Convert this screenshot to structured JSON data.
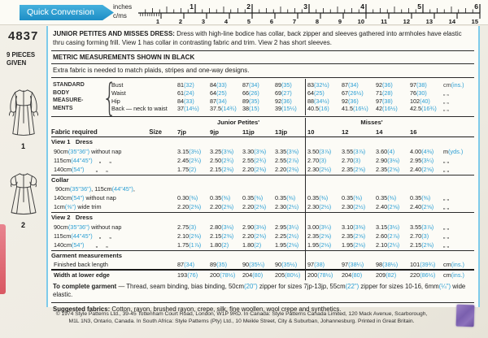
{
  "ruler": {
    "banner": "Quick Conversion",
    "unit_top": "inches",
    "unit_bottom": "c/ms",
    "inch_numbers": [
      1,
      2,
      3,
      4,
      5,
      6
    ],
    "cm_numbers": [
      1,
      2,
      3,
      4,
      5,
      6,
      7,
      8,
      9,
      10,
      11,
      12,
      13,
      14,
      15
    ]
  },
  "sidebar": {
    "pattern_number": "4837",
    "pieces_line1": "9 PIECES",
    "pieces_line2": "GIVEN",
    "view1_label": "1",
    "view2_label": "2"
  },
  "header": {
    "title_lead": "JUNIOR PETITES AND MISSES DRESS:",
    "description": " Dress with high-line bodice has collar, back zipper and sleeves gathered into armholes have elastic thru casing forming frill. View 1 has collar in contrasting fabric and trim. View 2 has short sleeves.",
    "metric_note": "METRIC MEASUREMENTS SHOWN IN BLACK",
    "extra_note": "Extra fabric is needed to match plaids, stripes and one-way designs."
  },
  "body_measurements": {
    "label_lines": [
      "STANDARD",
      "BODY",
      "MEASURE-",
      "MENTS"
    ],
    "rows": [
      {
        "label": "Bust",
        "jp": [
          "81(32)",
          "84(33)",
          "87(34)",
          "89(35)"
        ],
        "misses": [
          "83(32½)",
          "87(34)",
          "92(36)",
          "97(38)"
        ],
        "unit": "cm(ins.)"
      },
      {
        "label": "Waist",
        "jp": [
          "61(24)",
          "64(25)",
          "66(26)",
          "69(27)"
        ],
        "misses": [
          "64(25)",
          "67(26½)",
          "71(28)",
          "76(30)"
        ],
        "unit": "„   „"
      },
      {
        "label": "Hip",
        "jp": [
          "84(33)",
          "87(34)",
          "89(35)",
          "92(36)"
        ],
        "misses": [
          "88(34½)",
          "92(36)",
          "97(38)",
          "102(40)"
        ],
        "unit": "„   „"
      },
      {
        "label": "Back — neck to waist",
        "jp": [
          "37(14½)",
          "37.5(14¾)",
          "38(15)",
          "39(15¼)"
        ],
        "misses": [
          "40.5(16)",
          "41.5(16¼)",
          "42(16½)",
          "42.5(16¾)"
        ],
        "unit": "„   „"
      }
    ]
  },
  "fabric_table": {
    "label_header": "Fabric required",
    "size_header": "Size",
    "col_group_left": "Junior Petites'",
    "col_group_right": "Misses'",
    "sizes_jp": [
      "7jp",
      "9jp",
      "11jp",
      "13jp"
    ],
    "sizes_misses": [
      "10",
      "12",
      "14",
      "16"
    ],
    "sections": [
      {
        "title": "View 1   Dress",
        "rows": [
          {
            "label": "90cm(35\"36\") without nap",
            "jp": [
              "3.15(3½)",
              "3.25(3⅝)",
              "3.30(3⅝)",
              "3.35(3⅝)"
            ],
            "misses": [
              "3.50(3⅞)",
              "3.55(3⅞)",
              "3.60(4)",
              "4.00(4⅜)"
            ],
            "unit": "m(yds.)"
          },
          {
            "label": "115cm(44\"45\")    „     „",
            "jp": [
              "2.45(2¾)",
              "2.50(2¾)",
              "2.55(2¾)",
              "2.55(2⅞)"
            ],
            "misses": [
              "2.70(3)",
              "2.70(3)",
              "2.90(3⅛)",
              "2.95(3¼)"
            ],
            "unit": "„   „"
          },
          {
            "label": "140cm(54\")       „     „",
            "jp": [
              "1.75(2)",
              "2.15(2⅜)",
              "2.20(2⅜)",
              "2.20(2⅜)"
            ],
            "misses": [
              "2.30(2½)",
              "2.35(2⅝)",
              "2.35(2⅝)",
              "2.40(2⅝)"
            ],
            "unit": "„   „"
          }
        ]
      },
      {
        "title": "Collar",
        "rows": [
          {
            "label": " 90cm(35\"36\"), 115cm(44\"45\"),",
            "jp": [
              "",
              "",
              "",
              ""
            ],
            "misses": [
              "",
              "",
              "",
              ""
            ],
            "unit": ""
          },
          {
            "label": "140cm(54\") without nap",
            "jp": [
              "0.30(⅜)",
              "0.35(⅜)",
              "0.35(⅜)",
              "0.35(⅜)"
            ],
            "misses": [
              "0.35(⅜)",
              "0.35(⅜)",
              "0.35(⅜)",
              "0.35(⅜)"
            ],
            "unit": "„   „"
          },
          {
            "label": "1cm(⅜\") wide trim",
            "jp": [
              "2.20(2⅜)",
              "2.20(2⅜)",
              "2.20(2⅜)",
              "2.30(2½)"
            ],
            "misses": [
              "2.30(2½)",
              "2.30(2½)",
              "2.40(2⅝)",
              "2.40(2⅝)"
            ],
            "unit": "„   „"
          }
        ]
      },
      {
        "title": "View 2   Dress",
        "rows": [
          {
            "label": "90cm(35\"36\") without nap",
            "jp": [
              "2.75(3)",
              "2.80(3⅛)",
              "2.90(3⅛)",
              "2.95(3¼)"
            ],
            "misses": [
              "3.00(3¼)",
              "3.10(3⅜)",
              "3.15(3½)",
              "3.55(3⅞)"
            ],
            "unit": "„   „"
          },
          {
            "label": "115cm(44\"45\")    „     „",
            "jp": [
              "2.10(2⅜)",
              "2.15(2⅜)",
              "2.20(2⅜)",
              "2.25(2½)"
            ],
            "misses": [
              "2.35(2⅝)",
              "2.35(2⅝)",
              "2.60(2⅞)",
              "2.70(3)"
            ],
            "unit": "„   „"
          },
          {
            "label": "140cm(54\")       „     „",
            "jp": [
              "1.75(1⅞)",
              "1.80(2)",
              "1.80(2)",
              "1.95(2⅛)"
            ],
            "misses": [
              "1.95(2⅛)",
              "1.95(2⅛)",
              "2.10(2¼)",
              "2.15(2⅜)"
            ],
            "unit": "„   „"
          }
        ]
      },
      {
        "title": "Garment measurements",
        "rows": [
          {
            "label": "Finished back length",
            "jp": [
              "87(34)",
              "89(35)",
              "90(35¼)",
              "90(35½)"
            ],
            "misses": [
              "97(38)",
              "97(38¼)",
              "98(38½)",
              "101(39¾)"
            ],
            "unit": "cm(ins.)"
          },
          {
            "label": "Width at lower edge",
            "bold": true,
            "rule_above": true,
            "jp": [
              "193(76)",
              "200(78½)",
              "204(80)",
              "205(80½)"
            ],
            "misses": [
              "200(78½)",
              "204(80)",
              "209(82)",
              "220(86½)"
            ],
            "unit": "cm(ins.)"
          }
        ]
      }
    ]
  },
  "footer": {
    "complete_lead": "To complete garment",
    "complete_text": " — Thread, seam binding, bias binding, 50cm(20\") zipper for sizes 7jp-13jp, 55cm(22\") zipper for sizes 10-16, 6mm(¼\") wide elastic.",
    "suggested_lead": "Suggested fabrics:",
    "suggested_text": " Cotton, rayon, brushed rayon, crepe, silk, fine woollen, wool crepe and synthetics.",
    "copyright": "© 1974 Style Patterns Ltd., 39-45 Tottenham Court Road, London, W1P 9RD. In Canada: Style Patterns Canada Limited, 120 Mack Avenue, Scarborough, M1L 1N3, Ontario, Canada. In South Africa: Style Patterns (Pty) Ltd., 10 Meikle Street, City & Suburban, Johannesburg. Printed in Great Britain."
  },
  "colors": {
    "accent_blue": "#2b9fd4",
    "banner_blue": "#1e8ec6",
    "stamp_purple": "#7a5fae",
    "pink_edge": "#d95862"
  }
}
